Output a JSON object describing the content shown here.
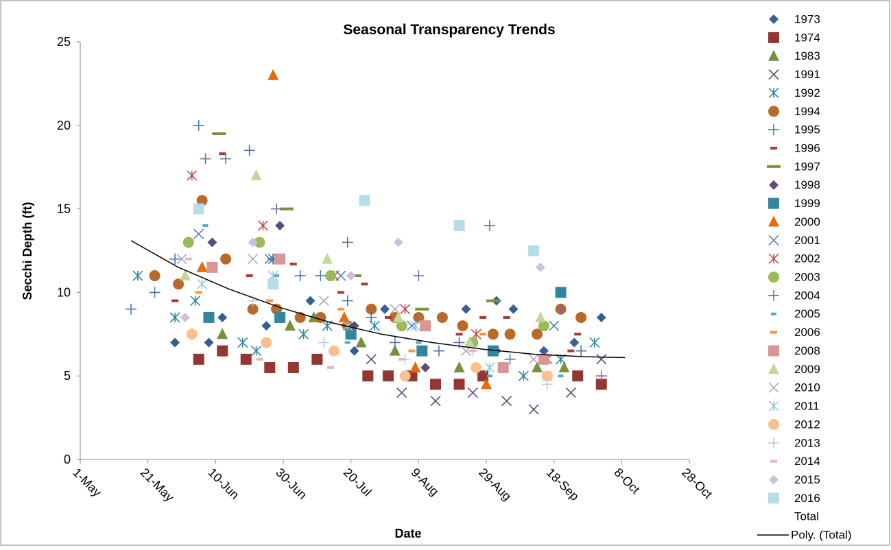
{
  "chart_data": {
    "type": "scatter",
    "title": "Seasonal Transparency Trends",
    "x_label": "Date",
    "y_label": "Secchi Depth (ft)",
    "xlim": [
      121,
      301
    ],
    "xticks": [
      {
        "value": 121,
        "label": "1-May"
      },
      {
        "value": 141,
        "label": "21-May"
      },
      {
        "value": 161,
        "label": "10-Jun"
      },
      {
        "value": 181,
        "label": "30-Jun"
      },
      {
        "value": 201,
        "label": "20-Jul"
      },
      {
        "value": 221,
        "label": "9-Aug"
      },
      {
        "value": 241,
        "label": "29-Aug"
      },
      {
        "value": 261,
        "label": "18-Sep"
      },
      {
        "value": 281,
        "label": "8-Oct"
      },
      {
        "value": 301,
        "label": "28-Oct"
      }
    ],
    "ylim": [
      0,
      25
    ],
    "yticks": [
      0,
      5,
      10,
      15,
      20,
      25
    ],
    "grid": false,
    "legend": "right",
    "series": [
      {
        "name": "1973",
        "color": "#376092",
        "marker": "diamond",
        "x": [
          149,
          159,
          163,
          176,
          189,
          202,
          211,
          235,
          244,
          249,
          258,
          267,
          275
        ],
        "values": [
          7,
          7,
          8.5,
          8,
          9.5,
          6.5,
          9,
          9,
          9.5,
          9,
          6.5,
          7,
          8.5
        ]
      },
      {
        "name": "1974",
        "color": "#943634",
        "marker": "square",
        "x": [
          156,
          163,
          170,
          177,
          184,
          191,
          206,
          212,
          219,
          226,
          233,
          240,
          268,
          275
        ],
        "values": [
          6,
          6.5,
          6,
          5.5,
          5.5,
          6,
          5,
          5,
          5,
          4.5,
          4.5,
          5,
          5,
          4.5
        ]
      },
      {
        "name": "1983",
        "color": "#76923c",
        "marker": "triangle",
        "x": [
          163,
          183,
          190,
          204,
          214,
          233,
          256,
          264
        ],
        "values": [
          7.5,
          8,
          8.5,
          7,
          6.5,
          5.5,
          5.5,
          5.5
        ]
      },
      {
        "name": "1991",
        "color": "#5f497a",
        "marker": "x",
        "x": [
          207,
          216,
          226,
          237,
          247,
          255,
          266,
          275
        ],
        "values": [
          6,
          4,
          3.5,
          4,
          3.5,
          3,
          4,
          6
        ]
      },
      {
        "name": "1992",
        "color": "#31859c",
        "marker": "asterisk",
        "x": [
          138,
          149,
          155,
          169,
          173,
          178,
          187,
          194,
          208,
          252,
          263,
          273
        ],
        "values": [
          11,
          8.5,
          9.5,
          7,
          6.5,
          12,
          7.5,
          8,
          8,
          5,
          6,
          7
        ]
      },
      {
        "name": "1994",
        "color": "#b9692a",
        "marker": "circle",
        "x": [
          143,
          150,
          157,
          164,
          172,
          179,
          186,
          192,
          200,
          207,
          214,
          221,
          228,
          234,
          243,
          248,
          256,
          263,
          269
        ],
        "values": [
          11,
          10.5,
          15.5,
          12,
          9,
          9,
          8.5,
          8.5,
          8,
          9,
          8.5,
          8.5,
          8.5,
          8,
          7.5,
          7.5,
          7.5,
          9,
          8.5
        ]
      },
      {
        "name": "1995",
        "color": "#4a76b0",
        "marker": "plus",
        "x": [
          136,
          143,
          149,
          156,
          164,
          171,
          178,
          186,
          192,
          200,
          207,
          214,
          227,
          233,
          248,
          269
        ],
        "values": [
          9,
          10,
          12,
          20,
          18,
          18.5,
          12,
          11,
          11,
          9.5,
          8.5,
          7,
          6.5,
          7,
          6,
          6.5
        ]
      },
      {
        "name": "1996",
        "color": "#a63b38",
        "marker": "dash",
        "x": [
          149,
          163,
          171,
          184,
          198,
          205,
          212,
          233,
          240,
          247,
          268,
          266
        ],
        "values": [
          9.5,
          18.3,
          11,
          11.7,
          10,
          10.5,
          8.5,
          7.5,
          8.5,
          8.5,
          7.5,
          6.5
        ]
      },
      {
        "name": "1997",
        "color": "#77933c",
        "marker": "long-dash",
        "x": [
          162,
          182,
          202,
          222,
          243
        ],
        "values": [
          19.5,
          15,
          11,
          9,
          9.5
        ]
      },
      {
        "name": "1998",
        "color": "#604a7b",
        "marker": "diamond",
        "x": [
          160,
          180,
          202,
          223,
          244
        ],
        "values": [
          13,
          14,
          8,
          5.5,
          6.5
        ]
      },
      {
        "name": "1999",
        "color": "#31859c",
        "marker": "square",
        "x": [
          159,
          180,
          201,
          222,
          243,
          263
        ],
        "values": [
          8.5,
          8.5,
          7.5,
          6.5,
          6.5,
          10
        ]
      },
      {
        "name": "2000",
        "color": "#e46c0a",
        "marker": "triangle",
        "x": [
          157,
          178,
          199,
          220,
          241
        ],
        "values": [
          11.5,
          23,
          8.5,
          5.5,
          4.5
        ]
      },
      {
        "name": "2001",
        "color": "#4f81bd",
        "marker": "x",
        "x": [
          156,
          177,
          198,
          219,
          261
        ],
        "values": [
          13.5,
          12,
          11,
          8,
          8
        ]
      },
      {
        "name": "2002",
        "color": "#c0504d",
        "marker": "asterisk",
        "x": [
          154,
          175,
          196,
          217,
          238,
          259
        ],
        "values": [
          17,
          14,
          11,
          9,
          7.5,
          6
        ]
      },
      {
        "name": "2003",
        "color": "#9bbb59",
        "marker": "circle",
        "x": [
          153,
          174,
          195,
          216,
          237,
          258
        ],
        "values": [
          13,
          13,
          11,
          8,
          7,
          8
        ]
      },
      {
        "name": "2004",
        "color": "#8064a2",
        "marker": "plus",
        "x": [
          158,
          179,
          200,
          221,
          242,
          263,
          275
        ],
        "values": [
          18,
          15,
          13,
          11,
          14,
          9,
          5
        ]
      },
      {
        "name": "2005",
        "color": "#4bacc6",
        "marker": "short-dash",
        "x": [
          158,
          179,
          200,
          221,
          242,
          263
        ],
        "values": [
          14,
          11,
          7,
          7,
          5,
          5
        ]
      },
      {
        "name": "2006",
        "color": "#f79646",
        "marker": "dash",
        "x": [
          156,
          177,
          198,
          219,
          240
        ],
        "values": [
          10,
          9.5,
          9,
          6.5,
          7.5
        ]
      },
      {
        "name": "2008",
        "color": "#d99694",
        "marker": "square",
        "x": [
          160,
          180,
          223,
          246,
          258
        ],
        "values": [
          11.5,
          12,
          8,
          5.5,
          6
        ]
      },
      {
        "name": "2009",
        "color": "#c3d69b",
        "marker": "triangle",
        "x": [
          152,
          173,
          194,
          215,
          236,
          257
        ],
        "values": [
          11,
          17,
          12,
          8.5,
          7,
          8.5
        ]
      },
      {
        "name": "2010",
        "color": "#b3a2c7",
        "marker": "x",
        "x": [
          151,
          172,
          193,
          214,
          235,
          255
        ],
        "values": [
          12,
          12,
          9.5,
          9,
          6.5,
          6
        ]
      },
      {
        "name": "2011",
        "color": "#93cddd",
        "marker": "asterisk",
        "x": [
          157,
          178,
          200,
          220,
          242,
          259
        ],
        "values": [
          10.5,
          11,
          8,
          8,
          5.5,
          5
        ]
      },
      {
        "name": "2012",
        "color": "#fac090",
        "marker": "circle",
        "x": [
          154,
          176,
          196,
          217,
          238,
          259
        ],
        "values": [
          7.5,
          7,
          6.5,
          5,
          5.5,
          5
        ]
      },
      {
        "name": "2013",
        "color": "#b9cde5",
        "marker": "plus",
        "x": [
          172,
          193,
          217,
          237,
          259
        ],
        "values": [
          9.5,
          7,
          6,
          6.5,
          4.5
        ]
      },
      {
        "name": "2014",
        "color": "#e6b9b8",
        "marker": "dash",
        "x": [
          153,
          174,
          195,
          216,
          237
        ],
        "values": [
          12,
          6,
          5.5,
          6,
          6.5
        ]
      },
      {
        "name": "2015",
        "color": "#ccc1da",
        "marker": "diamond",
        "x": [
          152,
          172,
          201,
          215,
          257
        ],
        "values": [
          8.5,
          13,
          11,
          13,
          11.5
        ]
      },
      {
        "name": "2016",
        "color": "#b7dee8",
        "marker": "square",
        "x": [
          156,
          178,
          205,
          233,
          255
        ],
        "values": [
          15,
          10.5,
          15.5,
          14,
          12.5
        ]
      },
      {
        "name": "Total",
        "color": "#ffffff",
        "marker": "none",
        "x": [],
        "values": []
      }
    ],
    "trendline": {
      "name": "Poly. (Total)",
      "color": "#000000",
      "x": [
        136,
        150,
        165,
        180,
        195,
        210,
        225,
        240,
        255,
        270,
        282
      ],
      "values": [
        13.1,
        11.5,
        10.2,
        9.1,
        8.2,
        7.5,
        7.0,
        6.6,
        6.3,
        6.15,
        6.1
      ]
    }
  }
}
